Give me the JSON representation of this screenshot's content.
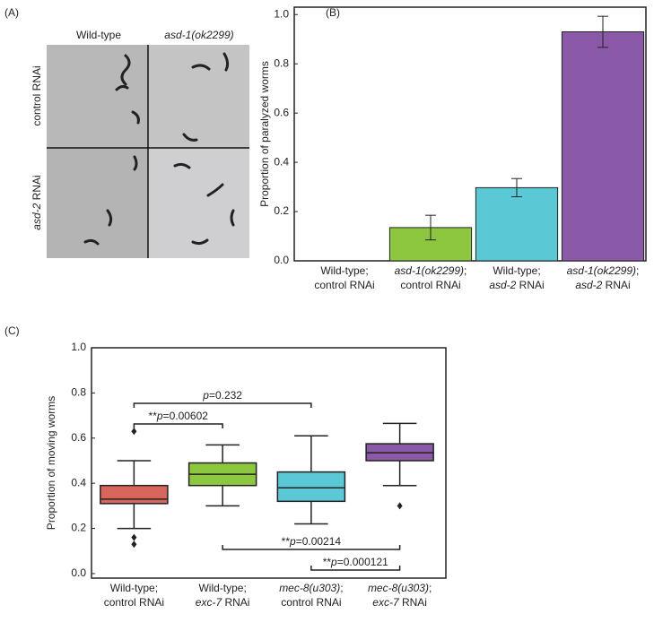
{
  "panel_a": {
    "label": "(A)",
    "columns": [
      "Wild-type",
      "asd-1(ok2299)"
    ],
    "rows": [
      [
        {
          "t": "control RNAi"
        }
      ],
      [
        {
          "t": "asd-2",
          "i": true
        },
        {
          "t": " RNAi"
        }
      ]
    ]
  },
  "chart_data": [
    {
      "type": "bar",
      "panel": "(B)",
      "ylabel": "Proportion of paralyzed worms",
      "categories": [
        [
          [
            {
              "t": "Wild-type;"
            }
          ],
          [
            {
              "t": "control RNAi"
            }
          ]
        ],
        [
          [
            {
              "t": "asd-1(ok2299)",
              "i": true
            },
            {
              "t": ";"
            }
          ],
          [
            {
              "t": "control RNAi"
            }
          ]
        ],
        [
          [
            {
              "t": "Wild-type;"
            }
          ],
          [
            {
              "t": "asd-2",
              "i": true
            },
            {
              "t": " RNAi"
            }
          ]
        ],
        [
          [
            {
              "t": "asd-1(ok2299)",
              "i": true
            },
            {
              "t": ";"
            }
          ],
          [
            {
              "t": "asd-2",
              "i": true
            },
            {
              "t": " RNAi"
            }
          ]
        ]
      ],
      "values": [
        0,
        0.135,
        0.297,
        0.93
      ],
      "errors": [
        0,
        0.05,
        0.037,
        0.063
      ],
      "colors": [
        "#ffffff",
        "#8dc63f",
        "#5bc8d5",
        "#8a5aa8"
      ],
      "ylim": [
        0,
        1.03
      ],
      "yticks": [
        {
          "value": 0,
          "label": "0.0"
        },
        0.2,
        0.4,
        0.6,
        0.8,
        {
          "value": 1,
          "label": "1.0"
        }
      ]
    },
    {
      "type": "box",
      "panel": "(C)",
      "ylabel": "Proportion of moving worms",
      "categories": [
        [
          [
            {
              "t": "Wild-type;"
            }
          ],
          [
            {
              "t": "control RNAi"
            }
          ]
        ],
        [
          [
            {
              "t": "Wild-type;"
            }
          ],
          [
            {
              "t": "exc-7",
              "i": true
            },
            {
              "t": " RNAi"
            }
          ]
        ],
        [
          [
            {
              "t": "mec-8(u303)",
              "i": true
            },
            {
              "t": ";"
            }
          ],
          [
            {
              "t": "control RNAi"
            }
          ]
        ],
        [
          [
            {
              "t": "mec-8(u303)",
              "i": true
            },
            {
              "t": ";"
            }
          ],
          [
            {
              "t": "exc-7",
              "i": true
            },
            {
              "t": " RNAi"
            }
          ]
        ]
      ],
      "boxes": [
        {
          "whislo": 0.2,
          "q1": 0.31,
          "median": 0.33,
          "q3": 0.39,
          "whishi": 0.5,
          "fliers": [
            0.63,
            0.16,
            0.13
          ]
        },
        {
          "whislo": 0.3,
          "q1": 0.39,
          "median": 0.44,
          "q3": 0.49,
          "whishi": 0.57,
          "fliers": []
        },
        {
          "whislo": 0.22,
          "q1": 0.32,
          "median": 0.38,
          "q3": 0.45,
          "whishi": 0.61,
          "fliers": []
        },
        {
          "whislo": 0.39,
          "q1": 0.5,
          "median": 0.535,
          "q3": 0.575,
          "whishi": 0.665,
          "fliers": [
            0.3
          ]
        }
      ],
      "colors": [
        "#d9665c",
        "#8dc63f",
        "#5bc8d5",
        "#8a5aa8"
      ],
      "ylim": [
        -0.02,
        1.0
      ],
      "yticks": [
        {
          "value": 0,
          "label": "0.0"
        },
        0.2,
        0.4,
        0.6,
        0.8,
        {
          "value": 1,
          "label": "1.0"
        }
      ],
      "annotations": [
        {
          "from": 0,
          "to": 2,
          "text": [
            {
              "t": "p",
              "i": true
            },
            {
              "t": "=0.232"
            }
          ]
        },
        {
          "from": 0,
          "to": 1,
          "text": [
            {
              "t": "**"
            },
            {
              "t": "p",
              "i": true
            },
            {
              "t": "=0.00602"
            }
          ]
        },
        {
          "from": 1,
          "to": 3,
          "text": [
            {
              "t": "**"
            },
            {
              "t": "p",
              "i": true
            },
            {
              "t": "=0.00214"
            }
          ]
        },
        {
          "from": 2,
          "to": 3,
          "text": [
            {
              "t": "**"
            },
            {
              "t": "p",
              "i": true
            },
            {
              "t": "=0.000121"
            }
          ]
        }
      ]
    }
  ]
}
